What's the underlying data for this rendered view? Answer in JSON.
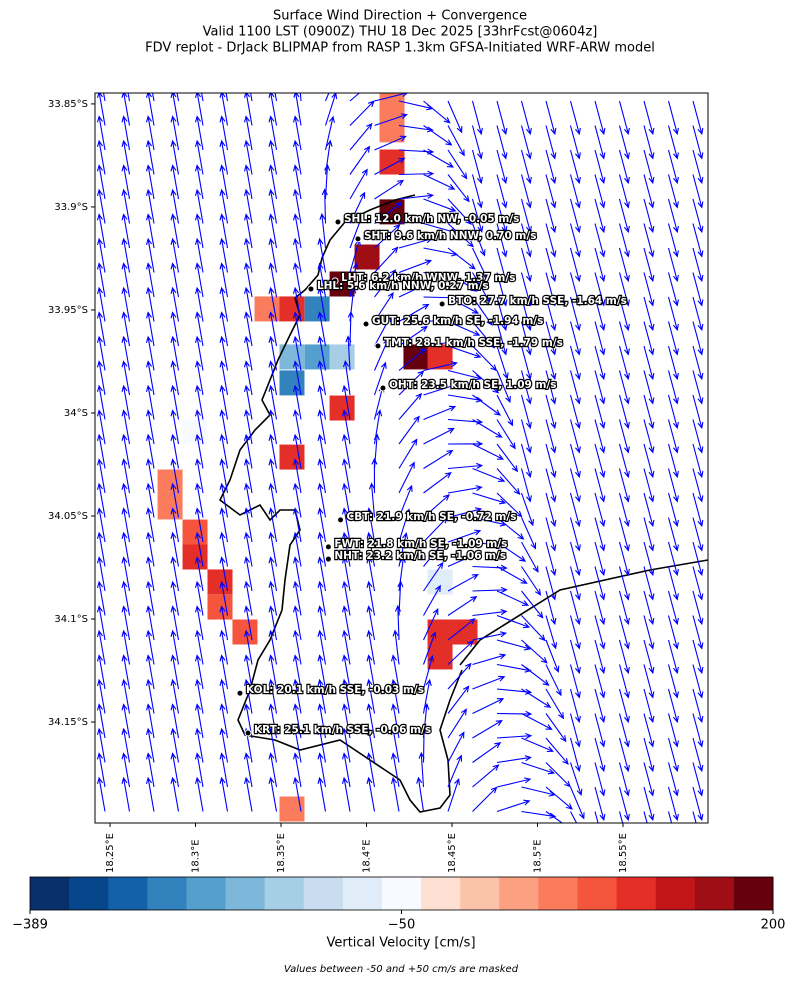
{
  "title": [
    "Surface Wind Direction + Convergence",
    "Valid 1100 LST (0900Z) THU 18 Dec 2025 [33hrFcst@0604z]",
    "FDV replot - DrJack BLIPMAP from RASP 1.3km GFSA-Initiated WRF-ARW model"
  ],
  "map": {
    "xlim": [
      18.2412,
      18.5997
    ],
    "ylim": [
      -34.199,
      -33.8447
    ],
    "xticks": [
      {
        "value": 18.25,
        "label": "18.25°E"
      },
      {
        "value": 18.3,
        "label": "18.3°E"
      },
      {
        "value": 18.35,
        "label": "18.35°E"
      },
      {
        "value": 18.4,
        "label": "18.4°E"
      },
      {
        "value": 18.45,
        "label": "18.45°E"
      },
      {
        "value": 18.5,
        "label": "18.5°E"
      },
      {
        "value": 18.55,
        "label": "18.55°E"
      }
    ],
    "yticks": [
      {
        "value": -33.85,
        "label": "33.85°S"
      },
      {
        "value": -33.9,
        "label": "33.9°S"
      },
      {
        "value": -33.95,
        "label": "33.95°S"
      },
      {
        "value": -34.0,
        "label": "34°S"
      },
      {
        "value": -34.05,
        "label": "34.05°S"
      },
      {
        "value": -34.1,
        "label": "34.1°S"
      },
      {
        "value": -34.15,
        "label": "34.15°S"
      }
    ],
    "wind_color": "#0000ff"
  },
  "stations": [
    {
      "label": "SHL: 12.0 km/h NW, -0.05 m/s",
      "lon": 18.3833,
      "lat": -33.9073
    },
    {
      "label": "SHT: 9.6 km/h NNW, 0.70 m/s",
      "lon": 18.395,
      "lat": -33.9155
    },
    {
      "label": "LHT: 6.2 km/h WNW, 1.37 m/s",
      "lon": 18.3816,
      "lat": -33.9359
    },
    {
      "label": "LHL: 5.6 km/h NNW, 0.27 m/s",
      "lon": 18.3675,
      "lat": -33.9398
    },
    {
      "label": "BTO: 27.7 km/h SSE, -1.64 m/s",
      "lon": 18.4442,
      "lat": -33.9471
    },
    {
      "label": "GUT: 25.6 km/h SE, -1.94 m/s",
      "lon": 18.3997,
      "lat": -33.9568
    },
    {
      "label": "TMT: 28.1 km/h SSE, -1.79 m/s",
      "lon": 18.4067,
      "lat": -33.9675
    },
    {
      "label": "OHT: 23.5 km/h SE, 1.09 m/s",
      "lon": 18.4096,
      "lat": -33.9879
    },
    {
      "label": "CBT: 21.9 km/h SE, -0.72 m/s",
      "lon": 18.3848,
      "lat": -34.0519
    },
    {
      "label": "FWT: 21.8 km/h SE, -1.09 m/s",
      "lon": 18.3777,
      "lat": -34.065
    },
    {
      "label": "NHT: 23.2 km/h SE, -1.06 m/s",
      "lon": 18.3777,
      "lat": -34.0709
    },
    {
      "label": "KOL: 20.1 km/h SSE, -0.03 m/s",
      "lon": 18.326,
      "lat": -34.136
    },
    {
      "label": "KRT: 25.1 km/h SSE, -0.06 m/s",
      "lon": 18.3307,
      "lat": -34.1553
    }
  ],
  "cells": [
    {
      "lon": 18.4149,
      "lat": -33.8505,
      "value": 60
    },
    {
      "lon": 18.4149,
      "lat": -33.8626,
      "value": 55
    },
    {
      "lon": 18.4149,
      "lat": -33.8782,
      "value": 95
    },
    {
      "lon": 18.4149,
      "lat": -33.9024,
      "value": 190
    },
    {
      "lon": 18.4003,
      "lat": -33.9243,
      "value": 170
    },
    {
      "lon": 18.3857,
      "lat": -33.9374,
      "value": 190
    },
    {
      "lon": 18.3564,
      "lat": -33.9495,
      "value": 110
    },
    {
      "lon": 18.3418,
      "lat": -33.9495,
      "value": 65
    },
    {
      "lon": 18.3711,
      "lat": -33.9495,
      "value": -250
    },
    {
      "lon": 18.3564,
      "lat": -33.9728,
      "value": -200
    },
    {
      "lon": 18.3711,
      "lat": -33.9728,
      "value": -230
    },
    {
      "lon": 18.3857,
      "lat": -33.9728,
      "value": -150
    },
    {
      "lon": 18.3564,
      "lat": -33.9854,
      "value": -280
    },
    {
      "lon": 18.4289,
      "lat": -33.9728,
      "value": 180
    },
    {
      "lon": 18.443,
      "lat": -33.9728,
      "value": 110
    },
    {
      "lon": 18.3857,
      "lat": -33.9976,
      "value": 110
    },
    {
      "lon": 18.3564,
      "lat": -34.0214,
      "value": 100
    },
    {
      "lon": 18.2851,
      "lat": -34.0335,
      "value": 60
    },
    {
      "lon": 18.2851,
      "lat": -34.0456,
      "value": 60
    },
    {
      "lon": 18.2997,
      "lat": -34.0578,
      "value": 70
    },
    {
      "lon": 18.2997,
      "lat": -34.0699,
      "value": 110
    },
    {
      "lon": 18.3143,
      "lat": -34.082,
      "value": 110
    },
    {
      "lon": 18.3143,
      "lat": -34.0942,
      "value": 90
    },
    {
      "lon": 18.3289,
      "lat": -34.1063,
      "value": 90
    },
    {
      "lon": 18.443,
      "lat": -34.1063,
      "value": 110
    },
    {
      "lon": 18.443,
      "lat": -34.1184,
      "value": 120
    },
    {
      "lon": 18.4576,
      "lat": -34.1063,
      "value": 100
    },
    {
      "lon": 18.2997,
      "lat": -34.0092,
      "value": -60
    },
    {
      "lon": 18.443,
      "lat": -34.082,
      "value": -70
    },
    {
      "lon": 18.3564,
      "lat": -34.1922,
      "value": 60
    }
  ],
  "colorbar": {
    "label": "Vertical Velocity [cm/s]",
    "vlim": [
      -389,
      200
    ],
    "vcenter": -50,
    "ticks": [
      {
        "value": -389,
        "label": "−389"
      },
      {
        "value": -50,
        "label": "−50"
      },
      200
    ],
    "colors": [
      "#08306b",
      "#08468c",
      "#1361a9",
      "#3282be",
      "#549fcd",
      "#7db8da",
      "#a6cee4",
      "#c9ddf0",
      "#e0ecf8",
      "#f7fbff",
      "#fee0d2",
      "#fcc3ab",
      "#fca082",
      "#fb7c5c",
      "#f5553c",
      "#e32f27",
      "#c3161b",
      "#9f0e14",
      "#67000d"
    ],
    "note": "Values between -50 and +50 cm/s are masked"
  }
}
